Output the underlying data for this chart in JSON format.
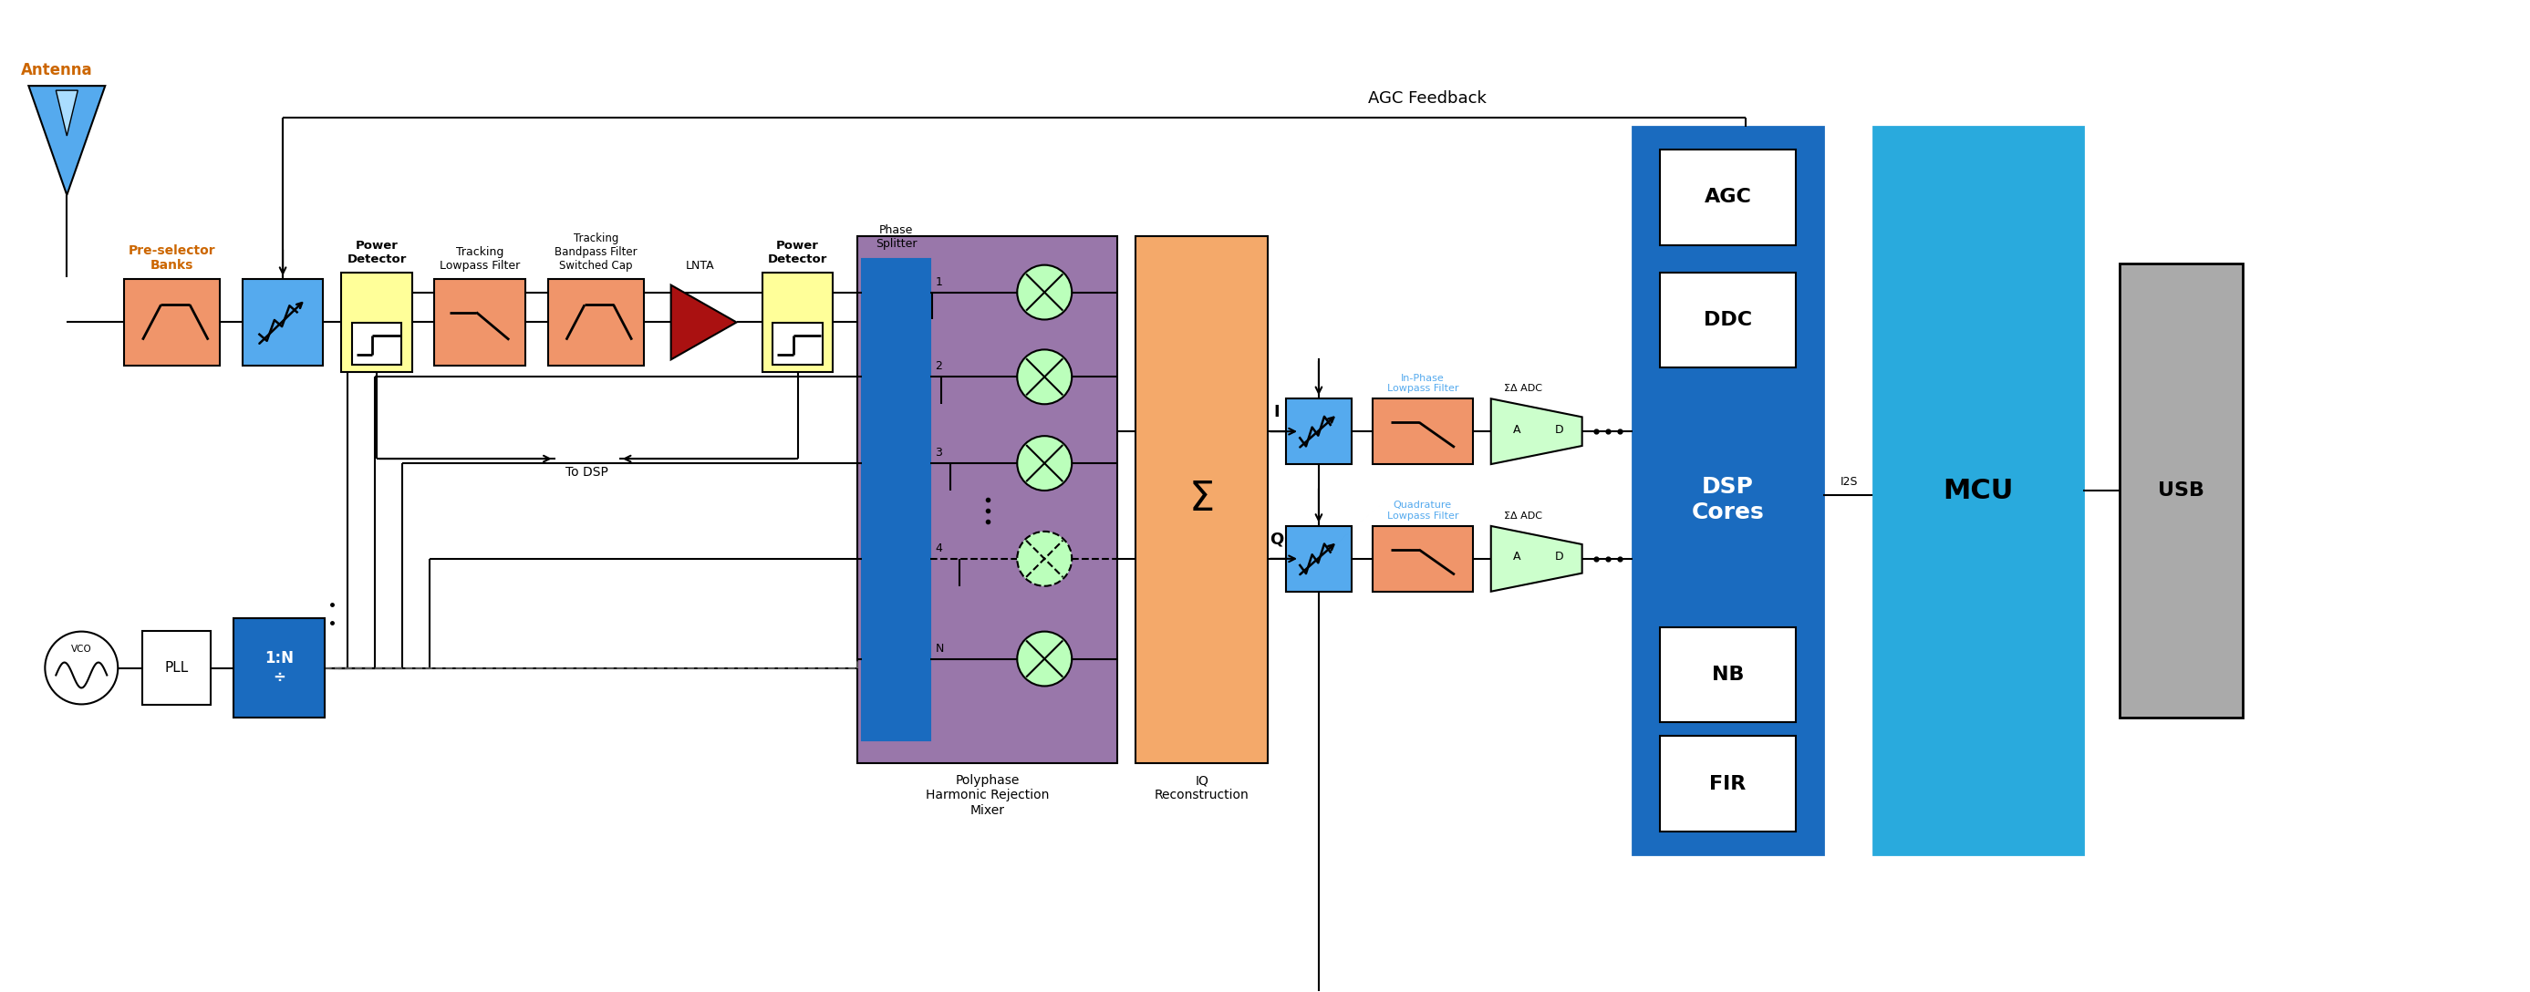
{
  "bg_color": "#ffffff",
  "C_orange": "#f0956a",
  "C_blue_att": "#55aaee",
  "C_yellow": "#ffff99",
  "C_purple": "#9977aa",
  "C_peach": "#f4a96a",
  "C_green": "#bbffbb",
  "C_dkblue": "#1a6bbf",
  "C_mcu": "#29aadd",
  "C_usb": "#aaaaaa",
  "C_red": "#aa1111",
  "C_green_adc": "#ccffcc",
  "orange_label": "#cc6600",
  "agc_feedback_text": "AGC Feedback",
  "antenna_label": "Antenna",
  "preselector_label": "Pre-selector\nBanks",
  "power_det_label": "Power\nDetector",
  "tracking_lp_label": "Tracking\nLowpass Filter",
  "tracking_bp_label": "Tracking\nBandpass Filter\nSwitched Cap",
  "lnta_label": "LNTA",
  "poly_label": "Polyphase\nHarmonic Rejection\nMixer",
  "iq_label": "IQ\nReconstruction",
  "sigma_label": "Σ",
  "I_label": "I",
  "Q_label": "Q",
  "inphase_lp_label": "In-Phase\nLowpass Filter",
  "quad_lp_label": "Quadrature\nLowpass Filter",
  "sigma_delta_label": "ΣΔ ADC",
  "dsp_label": "DSP\nCores",
  "agc_box_label": "AGC",
  "ddc_box_label": "DDC",
  "nb_box_label": "NB",
  "fir_box_label": "FIR",
  "mcu_label": "MCU",
  "usb_label": "USB",
  "i2s_label": "I2S",
  "todsp_label": "To DSP",
  "pll_label": "PLL",
  "vco_label": "VCO",
  "divider_label": "1:N\n÷",
  "phase_splitter_label": "Phase\nSplitter"
}
